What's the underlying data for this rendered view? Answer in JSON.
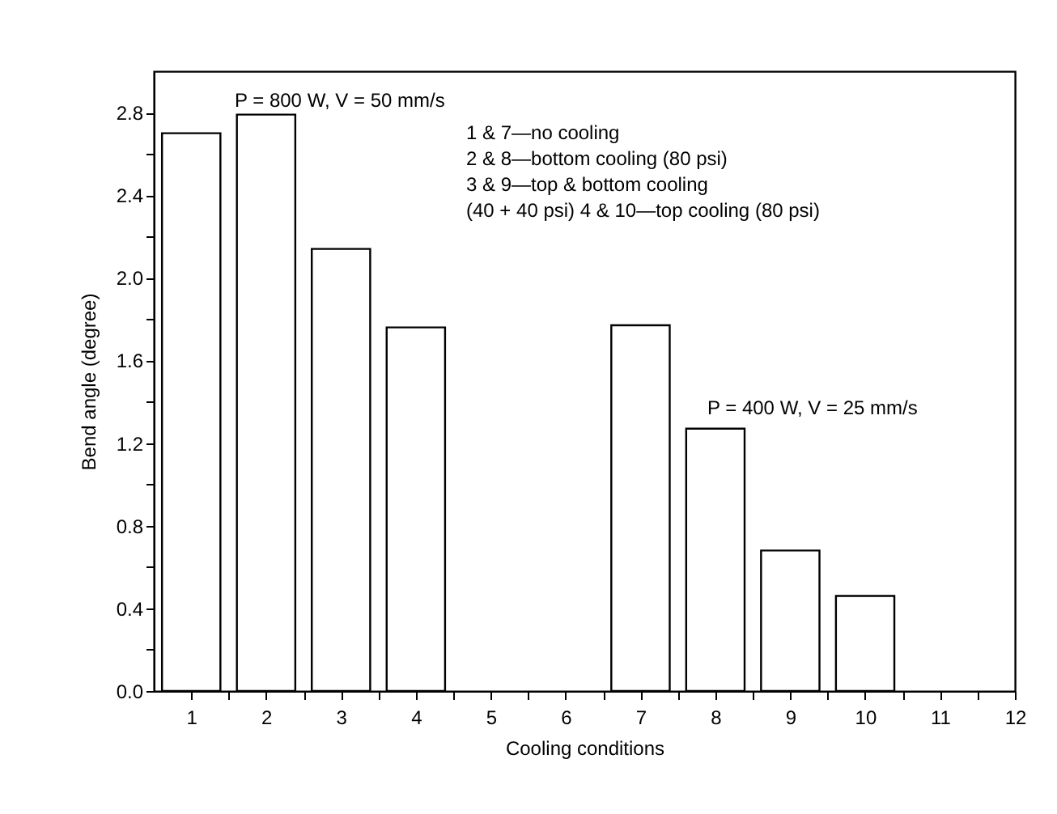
{
  "chart_data": {
    "type": "bar",
    "xlabel": "Cooling conditions",
    "ylabel": "Bend angle (degree)",
    "x": [
      1,
      2,
      3,
      4,
      7,
      8,
      9,
      10
    ],
    "values": [
      2.7,
      2.79,
      2.14,
      1.76,
      1.77,
      1.27,
      0.68,
      0.46
    ],
    "color": "#ffffff",
    "xlim": [
      0.5,
      12
    ],
    "xticks": [
      1,
      {
        "value": 1.5,
        "label": null
      },
      2,
      {
        "value": 2.5,
        "label": null
      },
      3,
      {
        "value": 3.5,
        "label": null
      },
      4,
      {
        "value": 4.5,
        "label": null
      },
      5,
      {
        "value": 5.5,
        "label": null
      },
      6,
      {
        "value": 6.5,
        "label": null
      },
      7,
      {
        "value": 7.5,
        "label": null
      },
      8,
      {
        "value": 8.5,
        "label": null
      },
      9,
      {
        "value": 9.5,
        "label": null
      },
      10,
      {
        "value": 10.5,
        "label": null
      },
      11,
      {
        "value": 11.5,
        "label": null
      },
      12
    ],
    "ylim": [
      0,
      3.0
    ],
    "yticks": [
      {
        "value": 0,
        "label": "0.0"
      },
      {
        "value": 0.2,
        "label": null
      },
      {
        "value": 0.4,
        "label": "0.4"
      },
      {
        "value": 0.6,
        "label": null
      },
      {
        "value": 0.8,
        "label": "0.8"
      },
      {
        "value": 1.0,
        "label": null
      },
      {
        "value": 1.2,
        "label": "1.2"
      },
      {
        "value": 1.4,
        "label": null
      },
      {
        "value": 1.6,
        "label": "1.6"
      },
      {
        "value": 1.8,
        "label": null
      },
      {
        "value": 2.0,
        "label": "2.0"
      },
      {
        "value": 2.2,
        "label": null
      },
      {
        "value": 2.4,
        "label": "2.4"
      },
      {
        "value": 2.6,
        "label": null
      },
      {
        "value": 2.8,
        "label": "2.8"
      }
    ],
    "grid": false,
    "annotations": [
      "P = 800 W, V = 50 mm/s",
      "1 & 7—no cooling",
      "2 & 8—bottom cooling (80 psi)",
      "3 & 9—top & bottom cooling",
      "(40 + 40 psi) 4 & 10—top cooling (80 psi)",
      "P = 400 W, V = 25 mm/s"
    ]
  }
}
